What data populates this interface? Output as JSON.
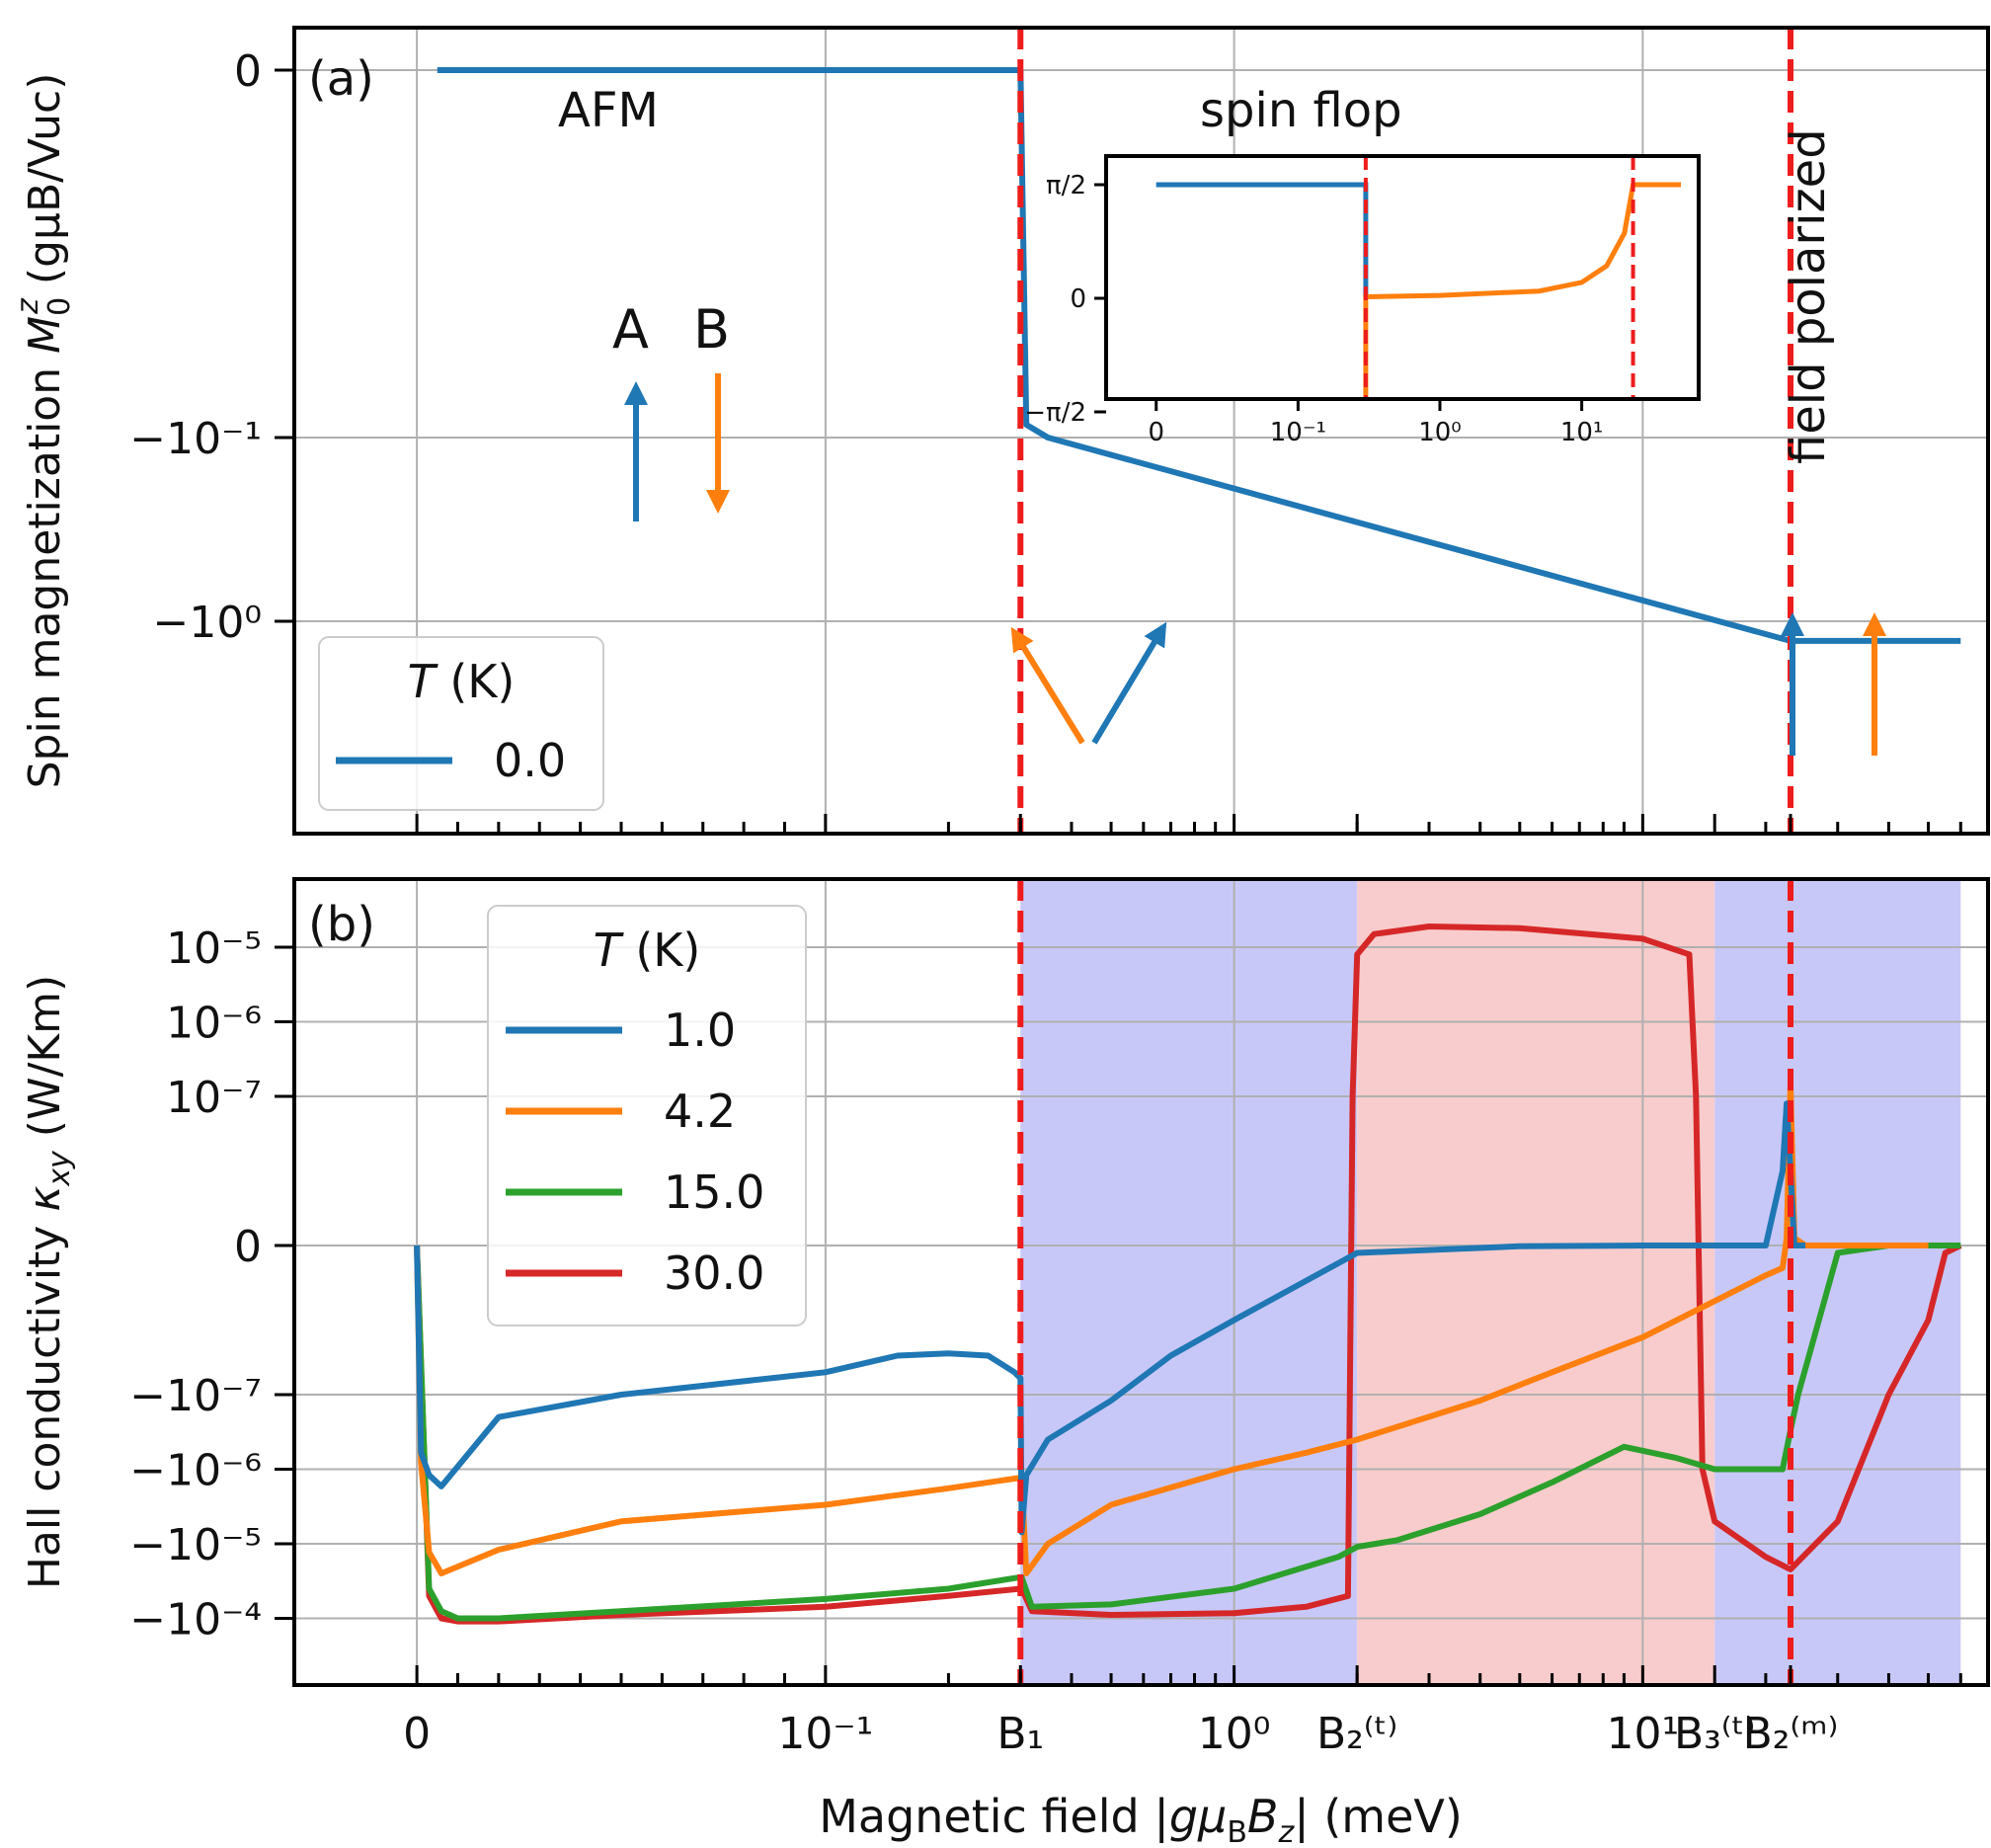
{
  "x_axis": {
    "label_plain": "Magnetic field |gμBBz| (meV)",
    "label_pre": "Magnetic field |",
    "label_mid": "g",
    "label_mu": "μ",
    "label_sub1": "B",
    "label_B": "B",
    "label_sub2": "z",
    "label_post": "| (meV)",
    "scale": "symlog",
    "linthresh": 0.1,
    "xlim": [
      -0.03,
      70
    ],
    "ticks": [
      {
        "label": "0",
        "value": 0
      },
      {
        "label": "10⁻¹",
        "value": 0.1
      },
      {
        "label": "B₁",
        "value": 0.3
      },
      {
        "label": "10⁰",
        "value": 1
      },
      {
        "label": "B₂⁽ᵗ⁾",
        "value": 2.0
      },
      {
        "label": "10¹",
        "value": 10
      },
      {
        "label": "B₃⁽ᵗ⁾",
        "value": 15
      },
      {
        "label": "B₂⁽ᵐ⁾",
        "value": 23
      }
    ]
  },
  "panel_a": {
    "tag": "(a)",
    "ylabel_plain": "Spin magnetization M0z (gμB/Vuc)",
    "ylabel_pre": "Spin magnetization ",
    "ylabel_M": "M",
    "ylabel_sub": "0",
    "ylabel_sup": "z",
    "ylabel_rest": " (gμB/Vuc)",
    "ytick_labels": [
      "0",
      "−10⁻¹",
      "−10⁰"
    ],
    "annotation_afm": "AFM",
    "annotation_spin_flop": "spin flop",
    "annotation_field_polarized": "field polarized",
    "sublattice_a": "A",
    "sublattice_b": "B",
    "legend_title": "T (K)",
    "legend_entries": [
      {
        "label": "0.0",
        "color": "#1f77b4"
      }
    ]
  },
  "inset": {
    "ytick_labels": [
      "π/2",
      "0",
      "−π/2"
    ],
    "xtick_labels": [
      "0",
      "10⁻¹",
      "10⁰",
      "10¹"
    ]
  },
  "panel_b": {
    "tag": "(b)",
    "ylabel_plain": "Hall conductivity κxy (W/Km)",
    "ylabel_pre": "Hall conductivity ",
    "ylabel_kappa": "κ",
    "ylabel_sub": "xy",
    "ylabel_post": " (W/Km)",
    "ytick_labels": [
      "10⁻⁵",
      "10⁻⁶",
      "10⁻⁷",
      "0",
      "−10⁻⁷",
      "−10⁻⁶",
      "−10⁻⁵",
      "−10⁻⁴"
    ],
    "legend_title": "T (K)",
    "legend_entries": [
      {
        "label": "1.0",
        "color": "#1f77b4"
      },
      {
        "label": "4.2",
        "color": "#ff7f0e"
      },
      {
        "label": "15.0",
        "color": "#2ca02c"
      },
      {
        "label": "30.0",
        "color": "#d62728"
      }
    ]
  },
  "colors": {
    "blue": "#1f77b4",
    "orange": "#ff7f0e",
    "green": "#2ca02c",
    "red": "#d62728",
    "dashed_line": "#ee1c1c",
    "shade_blue": "#c8c8f8",
    "shade_red": "#f8cccc"
  },
  "chart_data": [
    {
      "type": "line",
      "panel": "a",
      "title": "",
      "xscale": "symlog",
      "yscale": "symlog",
      "series": [
        {
          "name": "0.0",
          "x": [
            0.005,
            0.3,
            0.31,
            0.35,
            23,
            23.3,
            60
          ],
          "y": [
            0,
            0,
            -0.085,
            -0.1,
            -1.28,
            -1.28,
            -1.28
          ]
        }
      ],
      "vlines": [
        0.3,
        23
      ]
    },
    {
      "type": "line",
      "panel": "a-inset",
      "ylim_labels": [
        "−π/2",
        "0",
        "π/2"
      ],
      "series": [
        {
          "x": [
            0,
            0.3,
            0.3
          ],
          "y": [
            1.5708,
            1.5708,
            0
          ]
        },
        {
          "x": [
            0,
            0.3,
            0.3,
            1,
            5,
            10,
            15,
            20,
            23,
            50
          ],
          "y": [
            -1.5708,
            -1.5708,
            0.02,
            0.04,
            0.1,
            0.22,
            0.45,
            0.9,
            1.5708,
            1.5708
          ]
        }
      ],
      "vlines": [
        0.3,
        23
      ]
    },
    {
      "type": "line",
      "panel": "b",
      "xscale": "symlog",
      "yscale": "symlog",
      "shaded_regions": [
        {
          "from": 0.3,
          "to": 2.0,
          "color": "blue"
        },
        {
          "from": 2.0,
          "to": 15,
          "color": "red"
        },
        {
          "from": 15,
          "to": 60,
          "color": "blue"
        }
      ],
      "vlines": [
        0.3,
        23
      ],
      "series": [
        {
          "name": "1.0",
          "x": [
            0,
            0.001,
            0.003,
            0.006,
            0.02,
            0.05,
            0.1,
            0.15,
            0.2,
            0.25,
            0.29,
            0.3,
            0.302,
            0.31,
            0.35,
            0.5,
            0.7,
            1,
            2,
            5,
            10,
            20,
            22,
            22.5,
            23,
            23.5,
            25
          ],
          "y": [
            0,
            -6e-07,
            -1.2e-06,
            -1.7e-06,
            -2e-07,
            -1e-07,
            -5e-08,
            -3e-08,
            -2.8e-08,
            -3e-08,
            -5e-08,
            -6e-08,
            -7e-06,
            -1.2e-06,
            -4e-07,
            -1.2e-07,
            -3e-08,
            -1e-08,
            -1e-09,
            -1e-10,
            0,
            0,
            1e-08,
            8e-08,
            1e-08,
            0,
            0
          ]
        },
        {
          "name": "4.2",
          "x": [
            0,
            0.001,
            0.003,
            0.006,
            0.02,
            0.05,
            0.1,
            0.2,
            0.3,
            0.302,
            0.31,
            0.35,
            0.5,
            1,
            1.5,
            2,
            4,
            6,
            10,
            20,
            22,
            22.5,
            23,
            23.5,
            25,
            50
          ],
          "y": [
            0,
            -8e-07,
            -1.3e-05,
            -2.5e-05,
            -1.2e-05,
            -5e-06,
            -3e-06,
            -1.8e-06,
            -1.3e-06,
            -1.3e-06,
            -2.5e-05,
            -1e-05,
            -3e-06,
            -1e-06,
            -6e-07,
            -4e-07,
            -1.2e-07,
            -5e-08,
            -1.7e-08,
            -4e-09,
            -3e-09,
            1e-09,
            1.5e-07,
            1e-09,
            0,
            0
          ]
        },
        {
          "name": "15.0",
          "x": [
            0,
            0.003,
            0.006,
            0.01,
            0.02,
            0.05,
            0.1,
            0.2,
            0.3,
            0.302,
            0.32,
            0.5,
            1,
            1.8,
            2,
            2.5,
            4,
            6,
            9,
            12,
            15,
            22,
            23,
            24,
            27,
            30,
            40,
            60
          ],
          "y": [
            0,
            -4e-05,
            -8e-05,
            -0.0001,
            -0.0001,
            -8e-05,
            -5.5e-05,
            -4e-05,
            -2.8e-05,
            -2.8e-05,
            -7e-05,
            -6.5e-05,
            -4e-05,
            -1.5e-05,
            -1.1e-05,
            -9e-06,
            -4e-06,
            -1.5e-06,
            -5e-07,
            -7e-07,
            -1e-06,
            -1e-06,
            -3e-07,
            -1e-07,
            -1e-08,
            -1e-09,
            0,
            0
          ]
        },
        {
          "name": "30.0",
          "x": [
            0,
            0.003,
            0.006,
            0.01,
            0.02,
            0.05,
            0.1,
            0.2,
            0.3,
            0.302,
            0.32,
            0.5,
            1,
            1.5,
            1.9,
            1.95,
            2.0,
            2.2,
            3,
            5,
            10,
            13,
            13.5,
            14,
            15,
            20,
            23,
            30,
            40,
            50,
            55,
            60
          ],
          "y": [
            0,
            -5e-05,
            -0.0001,
            -0.00011,
            -0.00011,
            -9e-05,
            -7e-05,
            -5e-05,
            -4e-05,
            -4e-05,
            -8e-05,
            -9e-05,
            -8.5e-05,
            -7e-05,
            -5e-05,
            1e-07,
            8e-06,
            1.5e-05,
            1.9e-05,
            1.8e-05,
            1.3e-05,
            8e-06,
            1e-07,
            -1e-06,
            -5e-06,
            -1.5e-05,
            -2.2e-05,
            -5e-06,
            -1e-07,
            -1e-08,
            -1e-09,
            0
          ]
        }
      ]
    }
  ]
}
